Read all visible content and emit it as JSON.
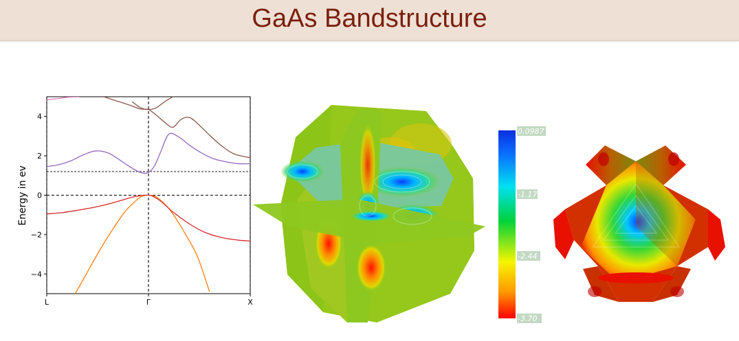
{
  "header": {
    "title": "GaAs Bandstructure"
  },
  "chart_data": {
    "type": "line",
    "title": "",
    "xlabel": "",
    "ylabel": "Energy in ev",
    "xlim": [
      0,
      1
    ],
    "ylim": [
      -5,
      5
    ],
    "x_ticks": [
      {
        "pos": 0.0,
        "label": "L"
      },
      {
        "pos": 0.5,
        "label": "Γ"
      },
      {
        "pos": 1.0,
        "label": "X"
      }
    ],
    "y_ticks": [
      4,
      2,
      0,
      -2,
      -4
    ],
    "high_symmetry_lines": [
      0.0,
      0.5,
      1.0
    ],
    "reference_lines": [
      0,
      1.2
    ],
    "series": [
      {
        "color": "#ff7f0e",
        "x": [
          0.14,
          0.2,
          0.26,
          0.32,
          0.38,
          0.42,
          0.46,
          0.48,
          0.5,
          0.52,
          0.54,
          0.58,
          0.62,
          0.68,
          0.74,
          0.8
        ],
        "y": [
          -5.0,
          -3.9,
          -2.8,
          -1.8,
          -0.9,
          -0.45,
          -0.1,
          -0.02,
          0.0,
          -0.02,
          -0.1,
          -0.45,
          -0.95,
          -1.95,
          -3.1,
          -4.9
        ]
      },
      {
        "color": "#d62728",
        "x": [
          0.0,
          0.08,
          0.16,
          0.24,
          0.32,
          0.38,
          0.42,
          0.46,
          0.48,
          0.5,
          0.52,
          0.56,
          0.62,
          0.7,
          0.78,
          0.86,
          0.94,
          1.0
        ],
        "y": [
          -0.95,
          -0.88,
          -0.75,
          -0.6,
          -0.4,
          -0.22,
          -0.1,
          -0.02,
          0.0,
          0.0,
          -0.05,
          -0.3,
          -0.85,
          -1.45,
          -1.9,
          -2.15,
          -2.28,
          -2.33
        ]
      },
      {
        "color": "#9467bd",
        "x": [
          0.0,
          0.06,
          0.12,
          0.18,
          0.24,
          0.3,
          0.35,
          0.4,
          0.44,
          0.47,
          0.5,
          0.53,
          0.56,
          0.6,
          0.65,
          0.7,
          0.76,
          0.82,
          0.88,
          0.94,
          1.0
        ],
        "y": [
          1.45,
          1.55,
          1.75,
          2.05,
          2.25,
          2.15,
          1.85,
          1.5,
          1.25,
          1.13,
          1.15,
          1.5,
          2.2,
          3.1,
          2.95,
          2.55,
          2.15,
          1.85,
          1.7,
          1.6,
          1.6
        ]
      },
      {
        "color": "#8c564b",
        "x": [
          0.28,
          0.34,
          0.4,
          0.46,
          0.5,
          0.54,
          0.58,
          0.62,
          0.66,
          0.7,
          0.74,
          0.8,
          0.86,
          0.92,
          1.0
        ],
        "y": [
          5.0,
          4.8,
          4.6,
          4.38,
          4.35,
          4.05,
          3.7,
          3.45,
          3.85,
          3.95,
          3.65,
          3.05,
          2.5,
          2.1,
          1.9
        ]
      },
      {
        "color": "#e377c2",
        "x": [
          0.0,
          0.05,
          0.1,
          0.16
        ],
        "y": [
          4.85,
          4.9,
          4.97,
          5.0
        ]
      },
      {
        "color": "#8c564b",
        "x": [
          0.42,
          0.46,
          0.5,
          0.54,
          0.58,
          0.62
        ],
        "y": [
          4.75,
          4.45,
          4.35,
          4.45,
          4.75,
          5.0
        ]
      }
    ]
  },
  "colorbar": {
    "labels": [
      "0.0987",
      "-1.17",
      "-2.44",
      "-3.70"
    ],
    "colors": [
      "#0a3cff",
      "#00d8ff",
      "#2fd63a",
      "#ffff00",
      "#ff9a00",
      "#ff0000"
    ]
  }
}
